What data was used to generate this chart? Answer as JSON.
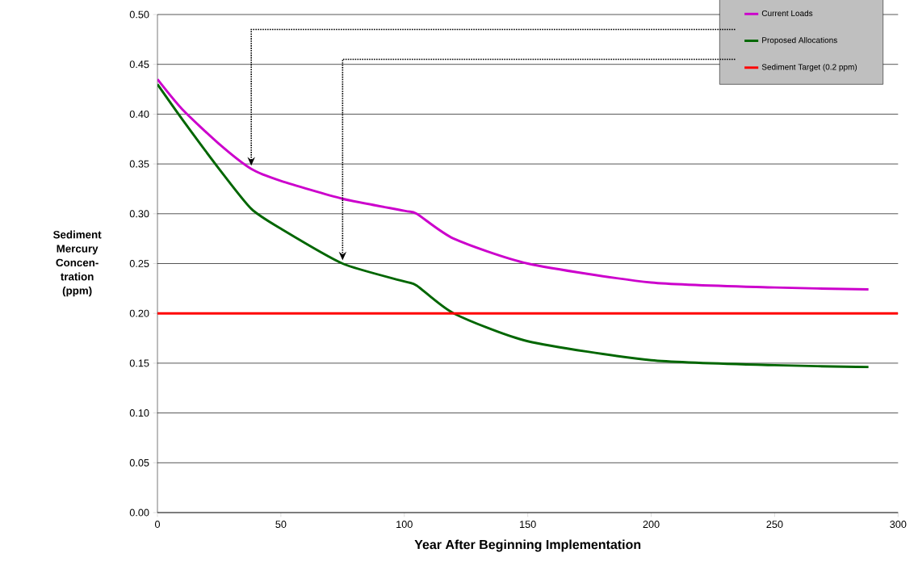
{
  "chart_data": {
    "type": "line",
    "xlabel": "Year After Beginning Implementation",
    "ylabel": "Sediment Mercury Concen-tration (ppm)",
    "x": [
      0,
      10,
      25,
      38,
      50,
      75,
      100,
      105,
      120,
      150,
      200,
      250,
      288
    ],
    "series": [
      {
        "name": "Current Loads",
        "color": "#cc00cc",
        "values": [
          0.435,
          0.405,
          0.37,
          0.345,
          0.333,
          0.315,
          0.303,
          0.3,
          0.275,
          0.25,
          0.231,
          0.226,
          0.224
        ]
      },
      {
        "name": "Proposed Allocations",
        "color": "#006600",
        "values": [
          0.43,
          0.395,
          0.345,
          0.305,
          0.285,
          0.25,
          0.232,
          0.228,
          0.2,
          0.172,
          0.153,
          0.148,
          0.146
        ]
      }
    ],
    "ref_lines": [
      {
        "axis": "y",
        "value": 0.2,
        "label": "Sediment Target (0.2 ppm)",
        "color": "#ff0000"
      }
    ],
    "xlim": [
      0,
      300
    ],
    "xticks": [
      0,
      50,
      100,
      150,
      200,
      250,
      300
    ],
    "ylim": [
      0,
      0.5
    ],
    "yticks": [
      {
        "value": 0,
        "label": "0.00"
      },
      {
        "value": 0.05,
        "label": "0.05"
      },
      {
        "value": 0.1,
        "label": "0.10"
      },
      {
        "value": 0.15,
        "label": "0.15"
      },
      {
        "value": 0.2,
        "label": "0.20"
      },
      {
        "value": 0.25,
        "label": "0.25"
      },
      {
        "value": 0.3,
        "label": "0.30"
      },
      {
        "value": 0.35,
        "label": "0.35"
      },
      {
        "value": 0.4,
        "label": "0.40"
      },
      {
        "value": 0.45,
        "label": "0.45"
      },
      {
        "value": 0.5,
        "label": "0.50"
      }
    ],
    "grid": "y",
    "legend": "top right",
    "marker": "none",
    "line_style": "solid"
  }
}
